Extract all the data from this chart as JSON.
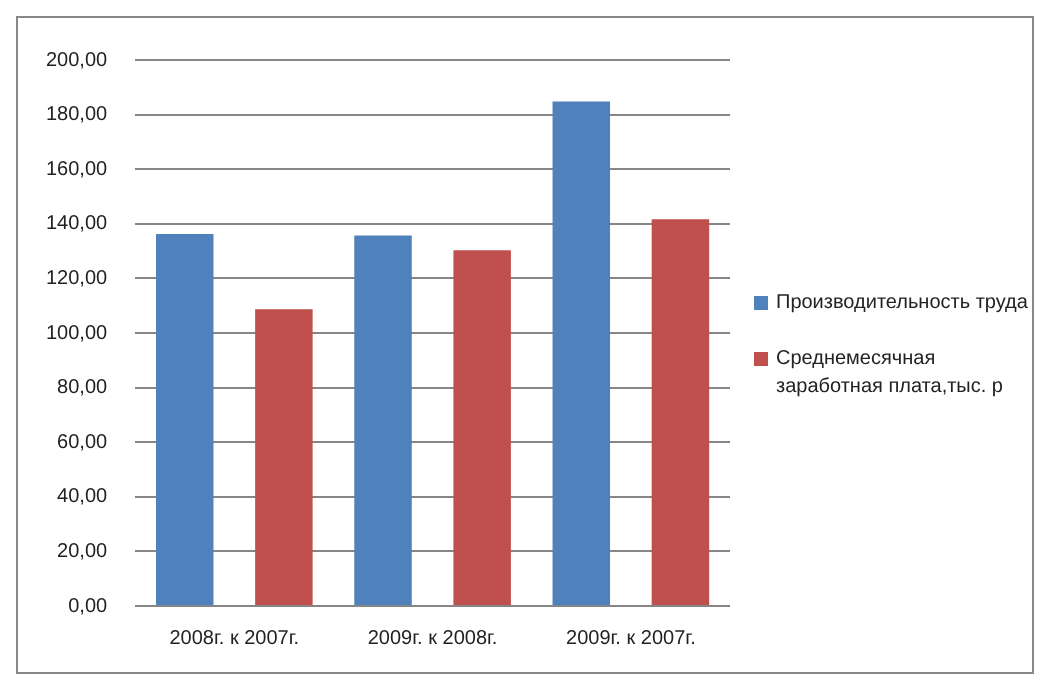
{
  "chart_data": {
    "type": "bar",
    "categories": [
      "2008г. к 2007г.",
      "2009г. к 2008г.",
      "2009г. к 2007г."
    ],
    "series": [
      {
        "name": "Производительность труда",
        "color": "#4f81bd",
        "values": [
          136.3,
          135.7,
          184.8
        ]
      },
      {
        "name": "Среднемесячная заработная плата,тыс. р",
        "color": "#c0504d",
        "values": [
          108.7,
          130.3,
          141.7
        ]
      }
    ],
    "ylim": [
      0,
      200
    ],
    "yticks": [
      {
        "value": 0,
        "label": "0,00"
      },
      {
        "value": 20,
        "label": "20,00"
      },
      {
        "value": 40,
        "label": "40,00"
      },
      {
        "value": 60,
        "label": "60,00"
      },
      {
        "value": 80,
        "label": "80,00"
      },
      {
        "value": 100,
        "label": "100,00"
      },
      {
        "value": 120,
        "label": "120,00"
      },
      {
        "value": 140,
        "label": "140,00"
      },
      {
        "value": 160,
        "label": "160,00"
      },
      {
        "value": 180,
        "label": "180,00"
      },
      {
        "value": 200,
        "label": "200,00"
      }
    ],
    "grid": "y",
    "legend": "right"
  }
}
